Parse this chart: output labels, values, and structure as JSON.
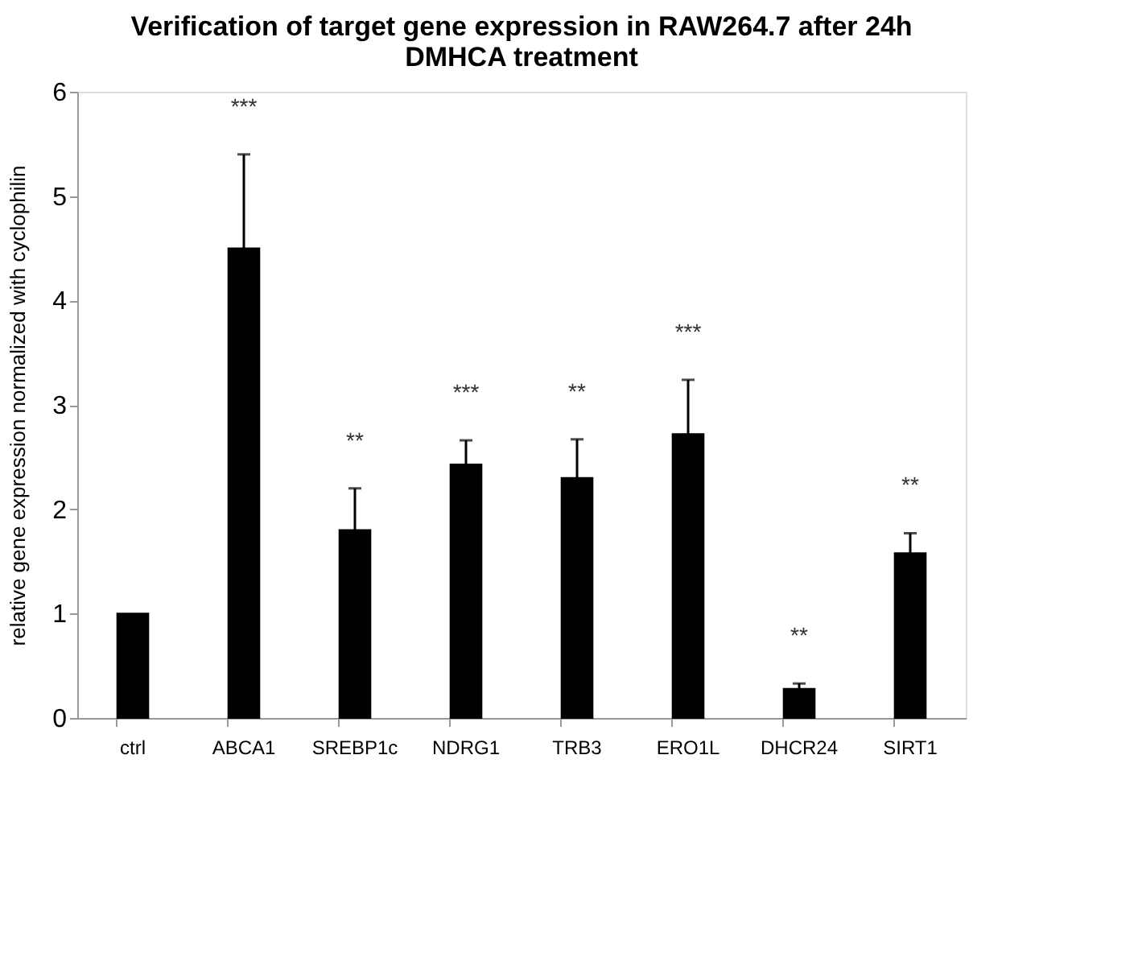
{
  "chart_data": {
    "type": "bar",
    "title": [
      "Verification of target gene expression in RAW264.7 after 24h",
      "DMHCA  treatment"
    ],
    "ylabel": "relative gene expression normalized with cyclophilin",
    "categories": [
      "ctrl",
      "ABCA1",
      "SREBP1c",
      "NDRG1",
      "TRB3",
      "ERO1L",
      "DHCR24",
      "SIRT1"
    ],
    "values": [
      1.0,
      4.5,
      1.8,
      2.43,
      2.3,
      2.72,
      0.28,
      1.58
    ],
    "errors": [
      null,
      0.9,
      0.4,
      0.23,
      0.37,
      0.52,
      0.05,
      0.19
    ],
    "color": "#000000",
    "ylim": [
      0,
      6
    ],
    "yticks": [
      0,
      1,
      2,
      3,
      4,
      5,
      6
    ],
    "grid": false,
    "annotations": [
      "***",
      "**",
      "***",
      "**",
      "***",
      "**",
      "**"
    ]
  }
}
